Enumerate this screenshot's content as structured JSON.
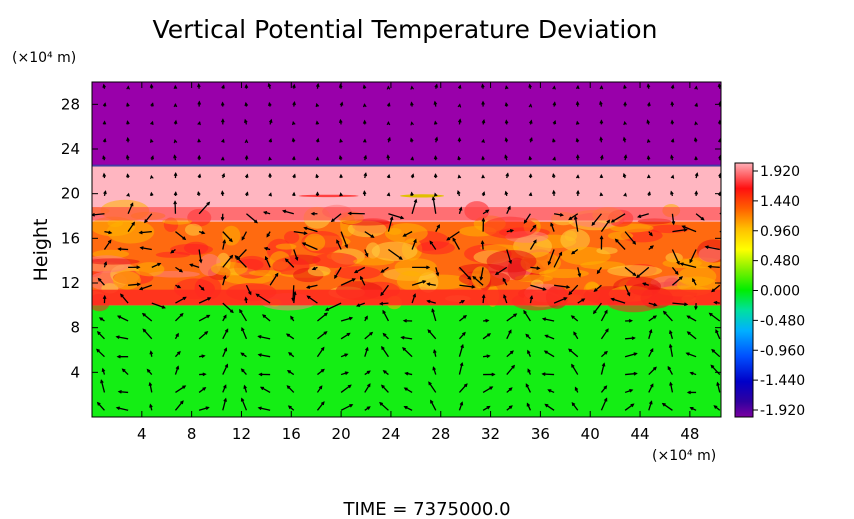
{
  "chart_data": {
    "type": "heatmap",
    "title": "Vertical Potential Temperature Deviation",
    "ylabel": "Height",
    "x_unit": "(×10⁴ m)",
    "y_unit": "(×10⁴ m)",
    "x_ticks": [
      4,
      8,
      12,
      16,
      20,
      24,
      28,
      32,
      36,
      40,
      44,
      48
    ],
    "y_ticks": [
      4,
      8,
      12,
      16,
      20,
      24,
      28
    ],
    "xlim": [
      0,
      50.5
    ],
    "ylim": [
      0,
      30
    ],
    "time_label": "TIME = 7375000.0",
    "colorbar": {
      "min": -1.92,
      "max": 1.92,
      "labels": [
        "1.920",
        "1.440",
        "0.960",
        "0.480",
        "0.000",
        "-0.480",
        "-0.960",
        "-1.440",
        "-1.920"
      ],
      "colors": [
        "#ffb6c1",
        "#ff2020",
        "#ff8c00",
        "#ffd700",
        "#c0ff00",
        "#00ee00",
        "#00e0c0",
        "#00a0ff",
        "#0000ff",
        "#000090",
        "#9900aa"
      ]
    },
    "bands": [
      {
        "from": 0,
        "to": 10,
        "value": 0.0,
        "color": "#14ee14"
      },
      {
        "from": 10,
        "to": 17.5,
        "value": 1.3,
        "color": "#ff6a10"
      },
      {
        "from": 17.5,
        "to": 22.5,
        "value": 1.92,
        "color": "#ffb6c1"
      },
      {
        "from": 22.5,
        "to": 30,
        "value": -1.92,
        "color": "#9900aa"
      }
    ],
    "vectors": "wind field (arrows) overlaid"
  }
}
